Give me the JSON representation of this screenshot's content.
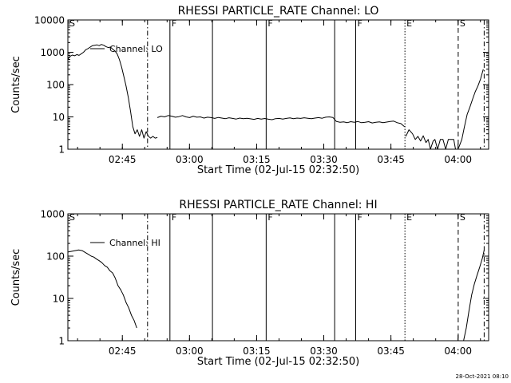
{
  "page": {
    "footer_timestamp": "28-Oct-2021 08:10"
  },
  "chart_data": [
    {
      "type": "line",
      "title": "RHESSI PARTICLE_RATE Channel: LO",
      "xlabel": "Start Time (02-Jul-15 02:32:50)",
      "ylabel": "Counts/sec",
      "yscale": "log",
      "xlim_minutes": [
        0,
        94
      ],
      "ylim": [
        1,
        10000
      ],
      "x_ticks": [
        {
          "label": "02:45",
          "minutes": 12.17
        },
        {
          "label": "03:00",
          "minutes": 27.17
        },
        {
          "label": "03:15",
          "minutes": 42.17
        },
        {
          "label": "03:30",
          "minutes": 57.17
        },
        {
          "label": "03:45",
          "minutes": 72.17
        },
        {
          "label": "04:00",
          "minutes": 87.17
        }
      ],
      "y_ticks": [
        {
          "label": "1",
          "value": 1
        },
        {
          "label": "10",
          "value": 10
        },
        {
          "label": "100",
          "value": 100
        },
        {
          "label": "1000",
          "value": 1000
        },
        {
          "label": "10000",
          "value": 10000
        }
      ],
      "legend": {
        "label": "Channel: LO",
        "position": "top-left"
      },
      "markers": [
        {
          "minutes": 0.0,
          "style": "solid",
          "label": "S"
        },
        {
          "minutes": 17.8,
          "style": "dashdot",
          "label": ""
        },
        {
          "minutes": 22.8,
          "style": "solid",
          "label": "F"
        },
        {
          "minutes": 32.3,
          "style": "solid",
          "label": ""
        },
        {
          "minutes": 44.3,
          "style": "solid",
          "label": "F"
        },
        {
          "minutes": 59.6,
          "style": "solid",
          "label": ""
        },
        {
          "minutes": 64.3,
          "style": "solid",
          "label": "F"
        },
        {
          "minutes": 75.3,
          "style": "dotted",
          "label": "E"
        },
        {
          "minutes": 87.2,
          "style": "dashed",
          "label": "S"
        },
        {
          "minutes": 93.0,
          "style": "dashdot",
          "label": ""
        }
      ],
      "series": [
        {
          "name": "Channel: LO",
          "segments": [
            {
              "x": [
                0,
                0.5,
                1,
                1.5,
                2,
                2.5,
                3,
                3.5,
                4,
                4.5,
                5,
                5.5,
                6,
                6.5,
                7,
                7.5,
                8,
                8.5,
                9,
                9.5,
                10,
                10.5,
                11,
                11.5,
                12,
                12.5,
                13,
                13.5,
                14,
                14.5,
                15,
                15.5,
                16,
                16.5,
                17,
                17.5,
                18,
                18.5,
                19,
                19.5,
                20
              ],
              "y": [
                600,
                750,
                820,
                780,
                850,
                800,
                900,
                1000,
                1200,
                1300,
                1450,
                1600,
                1650,
                1700,
                1600,
                1750,
                1650,
                1500,
                1400,
                1450,
                1250,
                1100,
                900,
                600,
                350,
                180,
                90,
                40,
                15,
                5,
                3,
                4,
                2.5,
                4,
                2.2,
                3.5,
                2.5,
                2.2,
                2.5,
                2.2,
                2.3
              ]
            },
            {
              "x": [
                20,
                20.8,
                21.6,
                22.4,
                23.2,
                24,
                24.8,
                25.6,
                26.4,
                27.2,
                28,
                28.8,
                29.6,
                30.4,
                31.2,
                32,
                32.8,
                33.6,
                34.4,
                35.2,
                36,
                36.8,
                37.6,
                38.4,
                39.2,
                40,
                40.8,
                41.6,
                42.4,
                43.2,
                44,
                44.8,
                45.6,
                46.4,
                47.2,
                48,
                48.8,
                49.6,
                50.4,
                51.2,
                52,
                52.8,
                53.6,
                54.4,
                55.2,
                56,
                56.8,
                57.6,
                58.4,
                59.2,
                60,
                60.8,
                61.6,
                62.4,
                63.2,
                64,
                64.8,
                65.6,
                66.4,
                67.2,
                68,
                68.8,
                69.6,
                70.4,
                71.2,
                72,
                72.8,
                73.6,
                74.4,
                75.2
              ],
              "y": [
                9.5,
                10.5,
                10,
                11,
                10.5,
                9.8,
                10.2,
                11,
                10,
                9.5,
                10.5,
                9.8,
                10,
                9.2,
                9.8,
                9.5,
                9,
                9.6,
                9.2,
                8.8,
                9.4,
                9,
                8.6,
                9.2,
                8.8,
                9.1,
                8.7,
                8.4,
                9,
                8.6,
                8.9,
                8.5,
                8.2,
                8.8,
                9,
                8.6,
                9,
                9.3,
                8.8,
                9.2,
                9,
                9.4,
                9.1,
                8.8,
                9.2,
                9.5,
                9.1,
                9.8,
                10,
                9.6,
                7.2,
                6.8,
                7,
                6.6,
                7.1,
                6.8,
                7.2,
                6.6,
                6.8,
                7.1,
                6.5,
                6.8,
                7,
                6.6,
                6.9,
                7.2,
                7.4,
                6.6,
                6.2,
                5
              ]
            },
            {
              "x": [
                75.5,
                76.2,
                77,
                77.6,
                78.2,
                78.8,
                79.4,
                80,
                80.5,
                81,
                81.6,
                82,
                82.6,
                83.2,
                83.8,
                84.4,
                85,
                85.6,
                86.2,
                86.6
              ],
              "y": [
                2.5,
                4,
                3,
                2,
                2.5,
                1.8,
                2.6,
                1.6,
                2,
                1,
                1.8,
                2,
                1,
                2,
                2,
                1,
                2,
                2,
                2,
                1
              ]
            },
            {
              "x": [
                87.3,
                88,
                88.6,
                89.2,
                89.8,
                90.4,
                91,
                91.6,
                92.2,
                92.8
              ],
              "y": [
                1.1,
                2,
                5,
                12,
                20,
                35,
                60,
                90,
                150,
                300
              ]
            }
          ]
        }
      ]
    },
    {
      "type": "line",
      "title": "RHESSI PARTICLE_RATE Channel: HI",
      "xlabel": "Start Time (02-Jul-15 02:32:50)",
      "ylabel": "Counts/sec",
      "yscale": "log",
      "xlim_minutes": [
        0,
        94
      ],
      "ylim": [
        1,
        1000
      ],
      "x_ticks": [
        {
          "label": "02:45",
          "minutes": 12.17
        },
        {
          "label": "03:00",
          "minutes": 27.17
        },
        {
          "label": "03:15",
          "minutes": 42.17
        },
        {
          "label": "03:30",
          "minutes": 57.17
        },
        {
          "label": "03:45",
          "minutes": 72.17
        },
        {
          "label": "04:00",
          "minutes": 87.17
        }
      ],
      "y_ticks": [
        {
          "label": "1",
          "value": 1
        },
        {
          "label": "10",
          "value": 10
        },
        {
          "label": "100",
          "value": 100
        },
        {
          "label": "1000",
          "value": 1000
        }
      ],
      "legend": {
        "label": "Channel: HI",
        "position": "top-left"
      },
      "markers": [
        {
          "minutes": 0.0,
          "style": "solid",
          "label": "S"
        },
        {
          "minutes": 17.8,
          "style": "dashdot",
          "label": ""
        },
        {
          "minutes": 22.8,
          "style": "solid",
          "label": "F"
        },
        {
          "minutes": 32.3,
          "style": "solid",
          "label": ""
        },
        {
          "minutes": 44.3,
          "style": "solid",
          "label": "F"
        },
        {
          "minutes": 59.6,
          "style": "solid",
          "label": ""
        },
        {
          "minutes": 64.3,
          "style": "solid",
          "label": "F"
        },
        {
          "minutes": 75.3,
          "style": "dotted",
          "label": "E"
        },
        {
          "minutes": 87.2,
          "style": "dashed",
          "label": "S"
        },
        {
          "minutes": 93.0,
          "style": "dashdot",
          "label": ""
        }
      ],
      "series": [
        {
          "name": "Channel: HI",
          "segments": [
            {
              "x": [
                0,
                0.8,
                1.6,
                2.4,
                3.2,
                4,
                4.6,
                5.2,
                5.8,
                6.4,
                7,
                7.6,
                8.2,
                8.8,
                9.4,
                10,
                10.6,
                11.2,
                11.8,
                12.4,
                13,
                13.6,
                14.2,
                14.8,
                15.4
              ],
              "y": [
                125,
                130,
                135,
                140,
                135,
                120,
                110,
                100,
                95,
                85,
                78,
                70,
                60,
                55,
                45,
                40,
                30,
                20,
                16,
                12,
                8,
                6,
                4,
                3,
                2
              ]
            },
            {
              "x": [
                88.4,
                89,
                89.6,
                90.2,
                90.8,
                91.4,
                92,
                92.6,
                93
              ],
              "y": [
                1,
                2,
                5,
                12,
                22,
                35,
                55,
                90,
                140
              ]
            }
          ]
        }
      ]
    }
  ]
}
